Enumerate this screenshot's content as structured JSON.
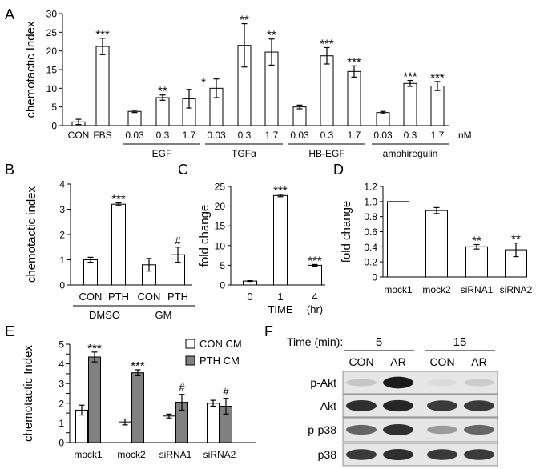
{
  "chart_data": [
    {
      "panel": "A",
      "type": "bar",
      "ylabel": "chemotactic Index",
      "ylim": [
        0,
        30
      ],
      "yticks": [
        0,
        5,
        10,
        15,
        20,
        25,
        30
      ],
      "unit": "nM",
      "categories": [
        "CON",
        "FBS",
        "0.03",
        "0.3",
        "1.7",
        "0.03",
        "0.3",
        "1.7",
        "0.03",
        "0.3",
        "1.7",
        "0.03",
        "0.3",
        "1.7"
      ],
      "values": [
        1.0,
        21.2,
        3.8,
        7.5,
        7.2,
        10.0,
        21.5,
        19.7,
        5.0,
        18.7,
        14.5,
        3.5,
        11.3,
        10.6
      ],
      "errors": [
        0.7,
        2.2,
        0.3,
        0.7,
        2.5,
        2.5,
        5.8,
        3.5,
        0.5,
        2.2,
        1.5,
        0.3,
        0.8,
        1.2
      ],
      "significance": [
        "",
        "***",
        "",
        "**",
        "",
        "",
        "**",
        "**",
        "",
        "***",
        "***",
        "",
        "***",
        "***"
      ],
      "groups": [
        {
          "label": "EGF",
          "start": 2,
          "end": 4
        },
        {
          "label": "TGFα",
          "start": 5,
          "end": 7
        },
        {
          "label": "HB-EGF",
          "start": 8,
          "end": 10
        },
        {
          "label": "amphiregulin",
          "start": 11,
          "end": 13
        }
      ],
      "extra_mark": "*"
    },
    {
      "panel": "B",
      "type": "bar",
      "ylabel": "chemotactic index",
      "ylim": [
        0,
        4
      ],
      "yticks": [
        0,
        1,
        2,
        3,
        4
      ],
      "categories": [
        "CON",
        "PTH",
        "CON",
        "PTH"
      ],
      "values": [
        1.0,
        3.2,
        0.8,
        1.2
      ],
      "errors": [
        0.1,
        0.05,
        0.25,
        0.3
      ],
      "significance": [
        "",
        "***",
        "",
        "#"
      ],
      "groups": [
        {
          "label": "DMSO",
          "start": 0,
          "end": 1
        },
        {
          "label": "GM",
          "start": 2,
          "end": 3
        }
      ]
    },
    {
      "panel": "C",
      "type": "bar",
      "ylabel": "fold change",
      "xlabel": "TIME",
      "xunit": "(hr)",
      "ylim": [
        0,
        25
      ],
      "yticks": [
        0,
        5,
        10,
        15,
        20,
        25
      ],
      "categories": [
        "0",
        "1",
        "4"
      ],
      "values": [
        1.0,
        22.7,
        5.0
      ],
      "errors": [
        0.1,
        0.3,
        0.2
      ],
      "significance": [
        "",
        "***",
        "***"
      ]
    },
    {
      "panel": "D",
      "type": "bar",
      "ylabel": "fold change",
      "ylim": [
        0,
        1.2
      ],
      "yticks": [
        "0",
        "0.2",
        "0.4",
        "0.6",
        "0.8",
        "1.0",
        "1.2"
      ],
      "categories": [
        "mock1",
        "mock2",
        "siRNA1",
        "siRNA2"
      ],
      "values": [
        1.0,
        0.88,
        0.4,
        0.36
      ],
      "errors": [
        0.0,
        0.04,
        0.03,
        0.09
      ],
      "significance": [
        "",
        "",
        "**",
        "**"
      ]
    },
    {
      "panel": "E",
      "type": "bar",
      "ylabel": "chemotactic Index",
      "ylim": [
        0,
        5
      ],
      "yticks": [
        0,
        0.5,
        1,
        1.5,
        2,
        2.5,
        3,
        3.5,
        4,
        4.5,
        5
      ],
      "ytick_labels": [
        "0",
        "",
        "1",
        "",
        "2",
        "",
        "3",
        "",
        "4",
        "",
        "5"
      ],
      "categories": [
        "mock1",
        "mock2",
        "siRNA1",
        "siRNA2"
      ],
      "legend_position": "top-right",
      "series": [
        {
          "name": "CON CM",
          "color": "#ffffff",
          "values": [
            1.65,
            1.05,
            1.35,
            2.0
          ],
          "errors": [
            0.25,
            0.15,
            0.1,
            0.15
          ],
          "significance": [
            "",
            "",
            "",
            ""
          ]
        },
        {
          "name": "PTH CM",
          "color": "#808080",
          "values": [
            4.35,
            3.55,
            2.05,
            1.85
          ],
          "errors": [
            0.25,
            0.15,
            0.4,
            0.4
          ],
          "significance": [
            "***",
            "***",
            "#",
            "#"
          ]
        }
      ]
    }
  ],
  "panels": {
    "A": "A",
    "B": "B",
    "C": "C",
    "D": "D",
    "E": "E",
    "F": "F"
  },
  "blot": {
    "time_label": "Time (min):",
    "time_groups": [
      "5",
      "15"
    ],
    "lanes": [
      "CON",
      "AR",
      "CON",
      "AR"
    ],
    "rows": [
      {
        "label": "p-Akt",
        "intensity": [
          0.15,
          0.95,
          0.05,
          0.12
        ]
      },
      {
        "label": "Akt",
        "intensity": [
          0.85,
          0.9,
          0.8,
          0.8
        ]
      },
      {
        "label": "p-p38",
        "intensity": [
          0.6,
          0.85,
          0.35,
          0.6
        ]
      },
      {
        "label": "p38",
        "intensity": [
          0.8,
          0.85,
          0.8,
          0.8
        ]
      }
    ]
  }
}
